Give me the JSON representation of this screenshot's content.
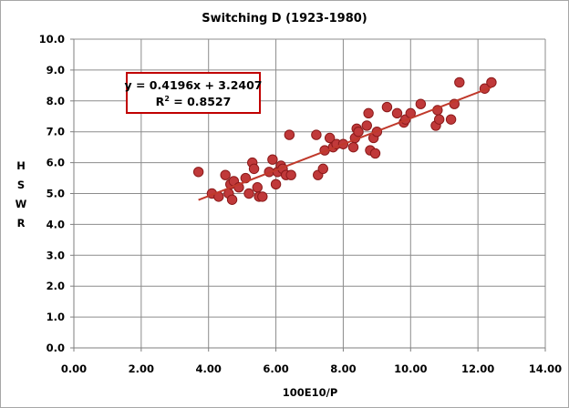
{
  "chart_data": {
    "type": "scatter",
    "title": "Switching D (1923-1980)",
    "xlabel": "100E10/P",
    "ylabel_letters": [
      "H",
      "S",
      "W",
      "R"
    ],
    "xlim": [
      0,
      14
    ],
    "ylim": [
      0,
      10
    ],
    "x_ticks": [
      "0.00",
      "2.00",
      "4.00",
      "6.00",
      "8.00",
      "10.00",
      "12.00",
      "14.00"
    ],
    "y_ticks": [
      "0.0",
      "1.0",
      "2.0",
      "3.0",
      "4.0",
      "5.0",
      "6.0",
      "7.0",
      "8.0",
      "9.0",
      "10.0"
    ],
    "grid": true,
    "marker_color": "#c0393a",
    "marker_edge": "#8b1a1a",
    "trendline_color": "#c0392b",
    "trendline": {
      "slope": 0.4196,
      "intercept": 3.2407,
      "x_range": [
        3.7,
        12.4
      ]
    },
    "equation_lines": [
      "y = 0.4196x + 3.2407",
      "R",
      "2",
      " = 0.8527"
    ],
    "equation_box_color": "#c00000",
    "points": [
      [
        3.7,
        5.7
      ],
      [
        4.1,
        5.0
      ],
      [
        4.3,
        4.9
      ],
      [
        4.5,
        5.6
      ],
      [
        4.6,
        5.0
      ],
      [
        4.65,
        5.3
      ],
      [
        4.7,
        4.8
      ],
      [
        4.75,
        5.4
      ],
      [
        4.9,
        5.2
      ],
      [
        5.1,
        5.5
      ],
      [
        5.2,
        5.0
      ],
      [
        5.3,
        6.0
      ],
      [
        5.35,
        5.8
      ],
      [
        5.45,
        5.2
      ],
      [
        5.5,
        4.9
      ],
      [
        5.6,
        4.9
      ],
      [
        5.8,
        5.7
      ],
      [
        5.9,
        6.1
      ],
      [
        6.0,
        5.3
      ],
      [
        6.05,
        5.7
      ],
      [
        6.15,
        5.9
      ],
      [
        6.2,
        5.8
      ],
      [
        6.3,
        5.6
      ],
      [
        6.4,
        6.9
      ],
      [
        6.45,
        5.6
      ],
      [
        7.2,
        6.9
      ],
      [
        7.25,
        5.6
      ],
      [
        7.4,
        5.8
      ],
      [
        7.45,
        6.4
      ],
      [
        7.6,
        6.8
      ],
      [
        7.7,
        6.5
      ],
      [
        7.8,
        6.6
      ],
      [
        8.0,
        6.6
      ],
      [
        8.3,
        6.5
      ],
      [
        8.35,
        6.8
      ],
      [
        8.4,
        7.1
      ],
      [
        8.45,
        7.0
      ],
      [
        8.7,
        7.2
      ],
      [
        8.75,
        7.6
      ],
      [
        8.8,
        6.4
      ],
      [
        8.9,
        6.8
      ],
      [
        8.95,
        6.3
      ],
      [
        9.0,
        7.0
      ],
      [
        9.3,
        7.8
      ],
      [
        9.6,
        7.6
      ],
      [
        9.8,
        7.3
      ],
      [
        9.85,
        7.4
      ],
      [
        10.0,
        7.6
      ],
      [
        10.3,
        7.9
      ],
      [
        10.75,
        7.2
      ],
      [
        10.8,
        7.7
      ],
      [
        10.85,
        7.4
      ],
      [
        11.2,
        7.4
      ],
      [
        11.3,
        7.9
      ],
      [
        11.45,
        8.6
      ],
      [
        12.2,
        8.4
      ],
      [
        12.4,
        8.6
      ]
    ]
  }
}
